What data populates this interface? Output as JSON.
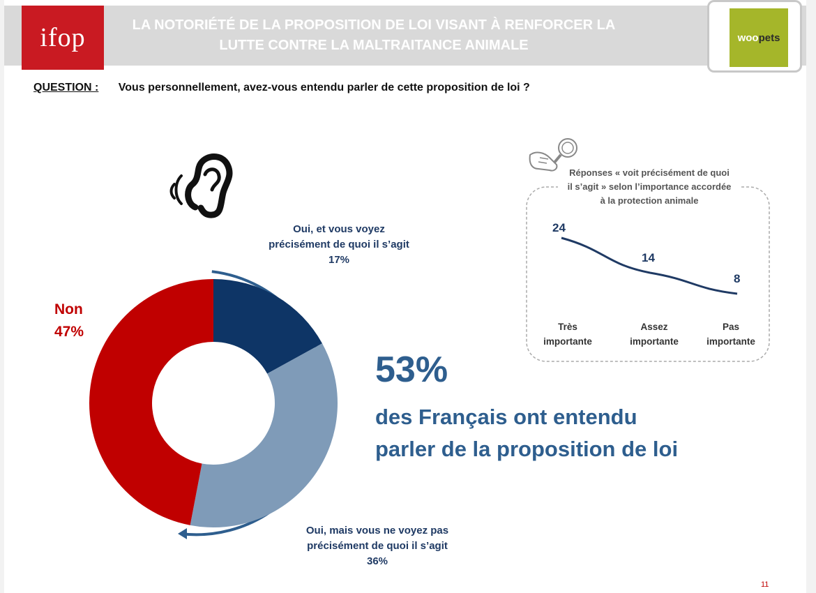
{
  "header": {
    "logo_left": "ifop",
    "title_line1": "LA NOTORIÉTÉ DE LA PROPOSITION DE LOI VISANT À RENFORCER LA",
    "title_line2": "LUTTE CONTRE LA MALTRAITANCE ANIMALE",
    "logo_right_part1": "woo",
    "logo_right_part2": "pets"
  },
  "question": {
    "label": "QUESTION :",
    "text": "Vous personnellement, avez-vous entendu parler de cette proposition de loi ?"
  },
  "headline": {
    "percent": "53%",
    "line1": "des Français ont entendu",
    "line2": "parler de la proposition de loi"
  },
  "page_number": "11",
  "colors": {
    "dark_blue": "#0e3566",
    "light_blue": "#7f9bb8",
    "red": "#c00000",
    "accent_blue": "#2e5e8e"
  },
  "chart_data": [
    {
      "type": "pie",
      "style": "donut",
      "slices": [
        {
          "label_line1": "Oui, et vous voyez",
          "label_line2": "précisément de quoi il s’agit",
          "value": 17,
          "display": "17%",
          "color": "#0e3566"
        },
        {
          "label_line1": "Oui, mais vous ne voyez pas",
          "label_line2": "précisément de quoi il s’agit",
          "value": 36,
          "display": "36%",
          "color": "#7f9bb8"
        },
        {
          "label_line1": "Non",
          "label_line2": "",
          "value": 47,
          "display": "47%",
          "color": "#c00000"
        }
      ]
    },
    {
      "type": "line",
      "title_line1": "Réponses « voit précisément de quoi",
      "title_line2": "il s’agit » selon l’importance accordée",
      "title_line3": "à la protection animale",
      "categories": [
        {
          "line1": "Très",
          "line2": "importante"
        },
        {
          "line1": "Assez",
          "line2": "importante"
        },
        {
          "line1": "Pas",
          "line2": "importante"
        }
      ],
      "values": [
        24,
        14,
        8
      ],
      "color": "#1f3a64"
    }
  ]
}
